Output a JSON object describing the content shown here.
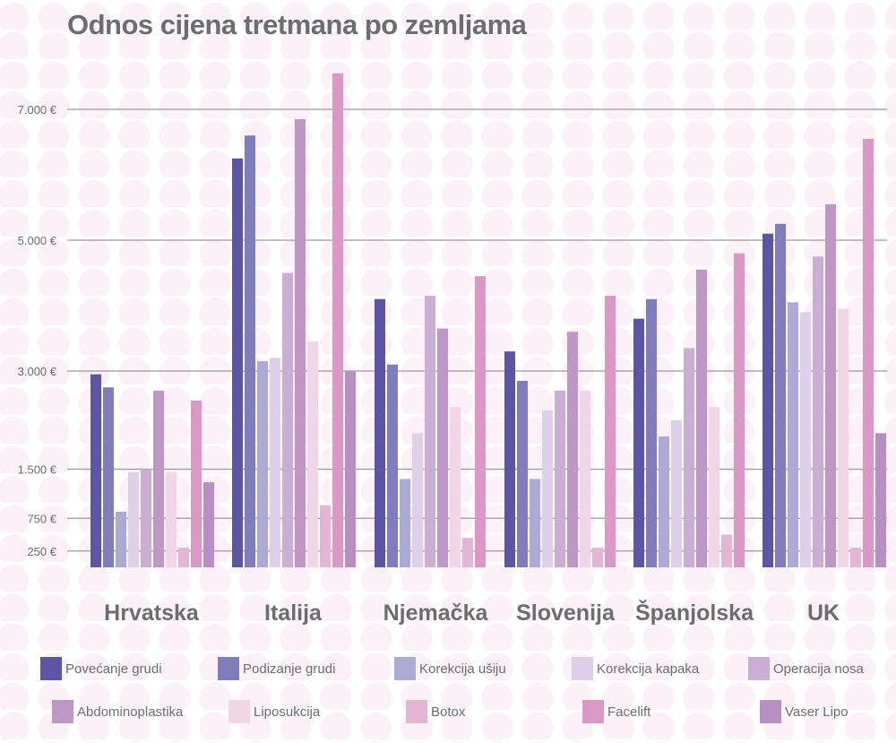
{
  "chart_data": {
    "type": "bar",
    "title": "Odnos cijena tretmana po zemljama",
    "xlabel": "",
    "ylabel": "",
    "ylim": [
      0,
      7700
    ],
    "yticks": [
      250,
      750,
      1500,
      3000,
      5000,
      7000
    ],
    "ytick_labels": [
      "250 €",
      "750 €",
      "1.500 €",
      "3.000 €",
      "5.000 €",
      "7.000 €"
    ],
    "grid": true,
    "legend_position": "bottom",
    "categories": [
      "Hrvatska",
      "Italija",
      "Njemačka",
      "Slovenija",
      "Španjolska",
      "UK"
    ],
    "series": [
      {
        "name": "Povećanje grudi",
        "color": "#5a56a5",
        "values": [
          2950,
          6250,
          4100,
          3300,
          3800,
          5100
        ]
      },
      {
        "name": "Podizanje grudi",
        "color": "#7f7dbb",
        "values": [
          2750,
          6600,
          3100,
          2850,
          4100,
          5250
        ]
      },
      {
        "name": "Korekcija ušiju",
        "color": "#aeaad6",
        "values": [
          850,
          3150,
          1350,
          1350,
          2000,
          4050
        ]
      },
      {
        "name": "Korekcija kapaka",
        "color": "#ddd0e8",
        "values": [
          1450,
          3200,
          2050,
          2400,
          2250,
          3900
        ]
      },
      {
        "name": "Operacija nosa",
        "color": "#cbaed4",
        "values": [
          1500,
          4500,
          4150,
          2700,
          3350,
          4750
        ]
      },
      {
        "name": "Abdominoplastika",
        "color": "#bf97c6",
        "values": [
          2700,
          6850,
          3650,
          3600,
          4550,
          5550
        ]
      },
      {
        "name": "Liposukcija",
        "color": "#f0d6e6",
        "values": [
          1450,
          3450,
          2450,
          2700,
          2450,
          3950
        ]
      },
      {
        "name": "Botox",
        "color": "#e4b6d6",
        "values": [
          300,
          950,
          450,
          300,
          500,
          300
        ]
      },
      {
        "name": "Facelift",
        "color": "#dc98c5",
        "values": [
          2550,
          7550,
          4450,
          4150,
          4800,
          6550
        ]
      },
      {
        "name": "Vaser Lipo",
        "color": "#b98fc3",
        "values": [
          1300,
          3000,
          null,
          null,
          null,
          2050
        ]
      }
    ]
  }
}
